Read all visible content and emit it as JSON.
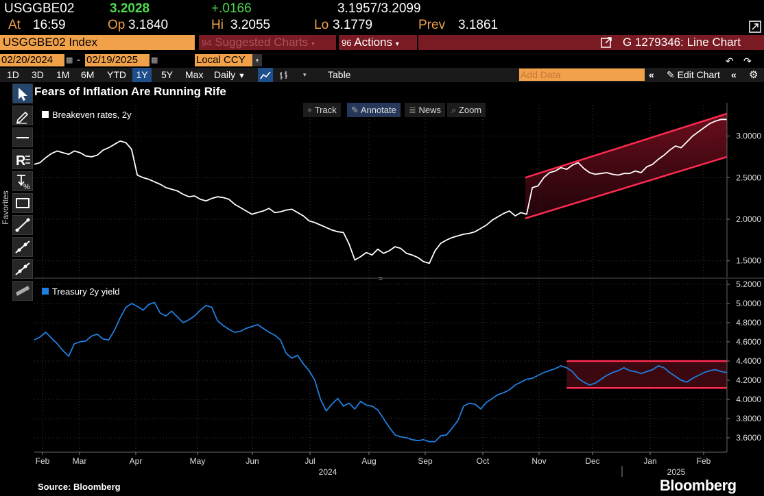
{
  "quote": {
    "ticker": "USGGBE02",
    "last": "3.2028",
    "change": "+.0166",
    "bid_ask_bid": "3.1957",
    "bid_ask_sep": "/",
    "bid_ask_ask": "3.2099",
    "at_label": "At",
    "at_time": "16:59",
    "open_label": "Op",
    "open": "3.1840",
    "high_label": "Hi",
    "high": "3.2055",
    "low_label": "Lo",
    "low": "3.1779",
    "prev_label": "Prev",
    "prev": "3.1861"
  },
  "toolbar": {
    "security": "USGGBE02 Index",
    "suggested": "Suggested Charts",
    "suggested_num": "94",
    "actions_num": "96",
    "actions": "Actions",
    "chart_title": "G 1279346: Line Chart",
    "start_date": "02/20/2024",
    "date_sep": "-",
    "end_date": "02/19/2025",
    "currency": "Local CCY",
    "ranges": [
      "1D",
      "3D",
      "1M",
      "6M",
      "YTD",
      "1Y",
      "5Y",
      "Max"
    ],
    "active_range": "1Y",
    "frequency": "Daily",
    "table_label": "Table",
    "add_data_placeholder": "Add Data",
    "edit_chart": "Edit Chart"
  },
  "left_tools": {
    "favorites": "Favorites"
  },
  "chart_header": {
    "title": "Fears of Inflation Are Running Rife",
    "pills": [
      "Track",
      "Annotate",
      "News",
      "Zoom"
    ]
  },
  "footer": {
    "source": "Source: Bloomberg",
    "brand": "Bloomberg"
  },
  "colors": {
    "breakeven": "#ffffff",
    "treasury": "#1f7fe0",
    "channel": "#ff2b50",
    "amber": "#f0a14a",
    "green": "#4ddb4d"
  },
  "chart_data": [
    {
      "type": "line",
      "x_axis": {
        "months": [
          "Feb",
          "Mar",
          "Apr",
          "May",
          "Jun",
          "Jul",
          "Aug",
          "Sep",
          "Oct",
          "Nov",
          "Dec",
          "Jan",
          "Feb"
        ],
        "years": [
          "2024",
          "2025"
        ]
      },
      "series": [
        {
          "name": "Breakeven rates, 2y",
          "color": "#ffffff",
          "values": [
            2.66,
            2.68,
            2.74,
            2.79,
            2.82,
            2.8,
            2.78,
            2.82,
            2.8,
            2.76,
            2.75,
            2.77,
            2.83,
            2.86,
            2.9,
            2.94,
            2.92,
            2.84,
            2.53,
            2.5,
            2.48,
            2.45,
            2.42,
            2.38,
            2.36,
            2.34,
            2.3,
            2.27,
            2.28,
            2.24,
            2.22,
            2.25,
            2.27,
            2.26,
            2.24,
            2.18,
            2.14,
            2.1,
            2.06,
            2.08,
            2.1,
            2.13,
            2.08,
            2.09,
            2.11,
            2.12,
            2.08,
            2.04,
            1.98,
            1.96,
            1.93,
            1.9,
            1.87,
            1.85,
            1.84,
            1.7,
            1.51,
            1.55,
            1.6,
            1.57,
            1.64,
            1.59,
            1.62,
            1.67,
            1.65,
            1.59,
            1.57,
            1.54,
            1.49,
            1.47,
            1.62,
            1.71,
            1.75,
            1.78,
            1.8,
            1.82,
            1.83,
            1.85,
            1.89,
            1.93,
            1.99,
            2.03,
            2.07,
            2.1,
            2.04,
            2.08,
            2.06,
            2.38,
            2.4,
            2.5,
            2.56,
            2.58,
            2.62,
            2.6,
            2.65,
            2.68,
            2.61,
            2.56,
            2.54,
            2.55,
            2.56,
            2.54,
            2.53,
            2.55,
            2.55,
            2.58,
            2.56,
            2.63,
            2.66,
            2.72,
            2.77,
            2.83,
            2.88,
            2.86,
            2.93,
            3.0,
            3.05,
            3.1,
            3.15,
            3.18,
            3.2,
            3.2
          ],
          "ylim": [
            1.3,
            3.4
          ],
          "ticks": [
            1.5,
            2.0,
            2.5,
            3.0
          ],
          "tick_labels": [
            "1.5000",
            "2.0000",
            "2.5000",
            "3.0000"
          ]
        },
        {
          "name": "Treasury 2y yield",
          "color": "#1f7fe0",
          "values": [
            4.62,
            4.65,
            4.7,
            4.64,
            4.58,
            4.51,
            4.45,
            4.58,
            4.6,
            4.61,
            4.66,
            4.68,
            4.63,
            4.62,
            4.72,
            4.85,
            4.96,
            5.0,
            4.97,
            4.93,
            4.99,
            5.01,
            4.9,
            4.87,
            4.92,
            4.86,
            4.8,
            4.83,
            4.87,
            4.93,
            4.98,
            4.96,
            4.82,
            4.77,
            4.73,
            4.7,
            4.71,
            4.74,
            4.76,
            4.78,
            4.74,
            4.7,
            4.67,
            4.62,
            4.48,
            4.43,
            4.46,
            4.37,
            4.3,
            4.2,
            4.0,
            3.88,
            3.95,
            4.01,
            3.93,
            3.96,
            3.9,
            3.98,
            3.94,
            3.93,
            3.89,
            3.8,
            3.71,
            3.63,
            3.61,
            3.6,
            3.58,
            3.57,
            3.58,
            3.56,
            3.56,
            3.62,
            3.63,
            3.7,
            3.78,
            3.93,
            3.96,
            3.95,
            3.9,
            3.97,
            4.01,
            4.05,
            4.07,
            4.1,
            4.15,
            4.18,
            4.21,
            4.22,
            4.25,
            4.28,
            4.3,
            4.32,
            4.35,
            4.33,
            4.29,
            4.22,
            4.18,
            4.15,
            4.17,
            4.21,
            4.25,
            4.28,
            4.3,
            4.33,
            4.3,
            4.29,
            4.27,
            4.29,
            4.31,
            4.35,
            4.33,
            4.28,
            4.24,
            4.2,
            4.18,
            4.22,
            4.25,
            4.28,
            4.3,
            4.31,
            4.29,
            4.28
          ],
          "ylim": [
            3.45,
            5.25
          ],
          "ticks": [
            3.6,
            3.8,
            4.0,
            4.2,
            4.4,
            4.6,
            4.8,
            5.0,
            5.2
          ],
          "tick_labels": [
            "3.6000",
            "3.8000",
            "4.0000",
            "4.2000",
            "4.4000",
            "4.6000",
            "4.8000",
            "5.0000",
            "5.2000"
          ]
        }
      ],
      "annotations": [
        {
          "panel": "breakeven",
          "kind": "rising-channel",
          "upper": [
            2.5,
            3.27
          ],
          "lower": [
            2.01,
            2.75
          ]
        },
        {
          "panel": "treasury",
          "kind": "flat-range",
          "upper": 4.4,
          "lower": 4.12
        }
      ]
    }
  ]
}
